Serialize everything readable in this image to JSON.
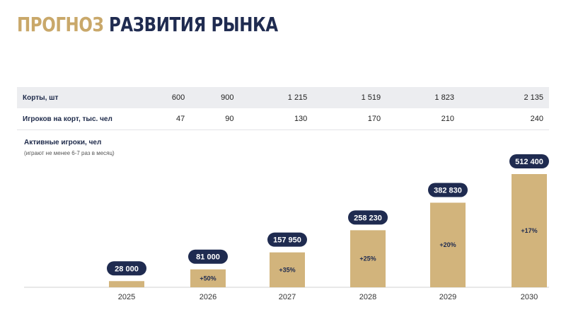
{
  "title": {
    "part1": "ПРОГНОЗ",
    "part2": "РАЗВИТИЯ РЫНКА"
  },
  "table": {
    "rows": [
      {
        "label": "Корты, шт",
        "values": [
          "600",
          "900",
          "1 215",
          "1 519",
          "1 823",
          "2 135"
        ]
      },
      {
        "label": "Игроков на корт, тыс. чел",
        "values": [
          "47",
          "90",
          "130",
          "170",
          "210",
          "240"
        ]
      }
    ]
  },
  "chart_data": {
    "type": "bar",
    "title": "Активные игроки, чел",
    "subtitle": "(играют не менее 6-7 раз в месяц)",
    "categories": [
      "2025",
      "2026",
      "2027",
      "2028",
      "2029",
      "2030"
    ],
    "values": [
      28000,
      81000,
      157950,
      258230,
      382830,
      512400
    ],
    "value_labels": [
      "28 000",
      "81 000",
      "157 950",
      "258 230",
      "382 830",
      "512 400"
    ],
    "growth_labels": [
      "",
      "+50%",
      "+35%",
      "+25%",
      "+20%",
      "+17%"
    ],
    "ylim": [
      0,
      512400
    ],
    "colors": {
      "bar": "#d2b47c",
      "label_pill": "#1f2b50"
    }
  }
}
